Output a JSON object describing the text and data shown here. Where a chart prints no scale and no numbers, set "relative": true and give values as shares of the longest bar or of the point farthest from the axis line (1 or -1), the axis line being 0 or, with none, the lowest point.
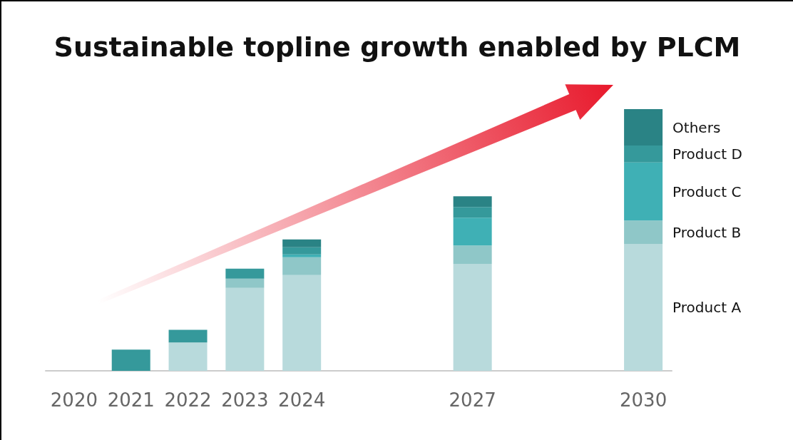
{
  "chart_data": {
    "type": "bar",
    "title": "Sustainable topline growth enabled by PLCM",
    "relative": true,
    "stacked": true,
    "legend": false,
    "categories": [
      "2020",
      "2021",
      "2022",
      "2023",
      "2024",
      null,
      null,
      "2027",
      null,
      null,
      "2030"
    ],
    "series": [
      {
        "name": "Product A",
        "color": "#b8dadc",
        "values": [
          null,
          null,
          0.108,
          0.317,
          0.366,
          null,
          null,
          0.409,
          null,
          null,
          0.485
        ]
      },
      {
        "name": "Product B",
        "color": "#8fc7c8",
        "values": [
          null,
          null,
          null,
          0.035,
          0.068,
          null,
          null,
          0.07,
          null,
          null,
          0.089
        ]
      },
      {
        "name": "Product C",
        "color": "#3fb0b5",
        "values": [
          null,
          null,
          null,
          null,
          0.011,
          null,
          null,
          0.106,
          null,
          null,
          0.222
        ]
      },
      {
        "name": "Product D",
        "color": "#35999b",
        "values": [
          null,
          0.081,
          0.049,
          0.038,
          0.027,
          null,
          null,
          0.041,
          null,
          null,
          0.065
        ]
      },
      {
        "name": "Others",
        "color": "#2a8385",
        "values": [
          null,
          null,
          null,
          null,
          0.03,
          null,
          null,
          0.041,
          null,
          null,
          0.139
        ]
      }
    ]
  }
}
